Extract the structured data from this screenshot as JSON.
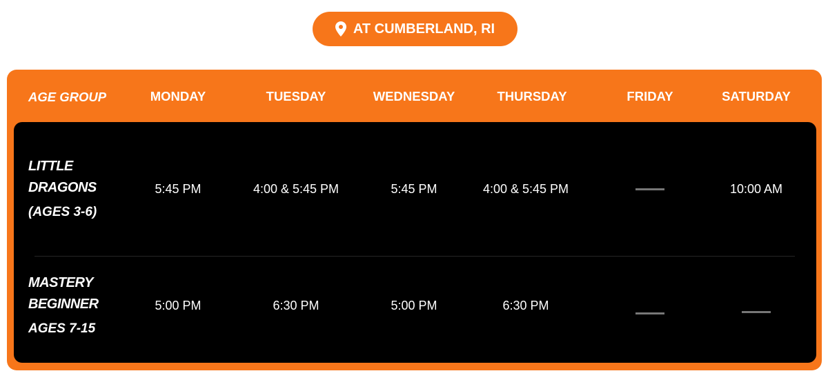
{
  "location": {
    "label": "AT CUMBERLAND, RI",
    "icon": "map-pin-icon"
  },
  "colors": {
    "accent": "#F7761A",
    "panel": "#000000",
    "dash": "#777777"
  },
  "table": {
    "headers": [
      "AGE GROUP",
      "MONDAY",
      "TUESDAY",
      "WEDNESDAY",
      "THURSDAY",
      "FRIDAY",
      "SATURDAY"
    ],
    "rows": [
      {
        "group_line1": "LITTLE",
        "group_line2": "DRAGONS",
        "group_ages": "(AGES 3-6)",
        "times": [
          "5:45 PM",
          "4:00 & 5:45 PM",
          "5:45 PM",
          "4:00 & 5:45 PM",
          "—",
          "10:00 AM"
        ]
      },
      {
        "group_line1": "MASTERY",
        "group_line2": "BEGINNER",
        "group_ages": "AGES 7-15",
        "times": [
          "5:00 PM",
          "6:30 PM",
          "5:00 PM",
          "6:30 PM",
          "—",
          "—"
        ]
      }
    ]
  }
}
